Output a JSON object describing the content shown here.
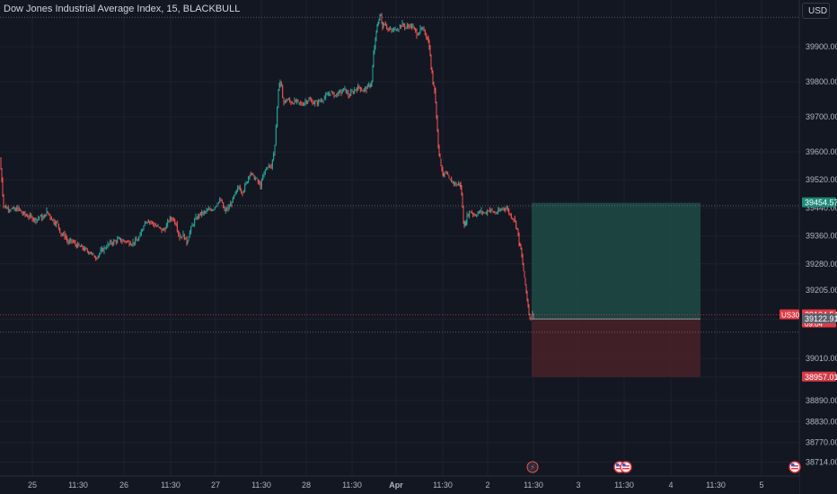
{
  "header": {
    "title": "Dow Jones Industrial Average Index, 15, BLACKBULL",
    "currency": "USD"
  },
  "colors": {
    "background": "#131722",
    "up": "#26a69a",
    "down": "#ef5350",
    "grid": "#1e222d",
    "axis_text": "#b2b5be",
    "target_zone": "#1f4b45",
    "stop_zone": "#4a2128",
    "target_label": "#1f8a7a",
    "stop_label": "#d23b47",
    "symbol_label": "#e03a44",
    "price_label_gray": "#5d606b"
  },
  "chart_data": {
    "type": "candlestick",
    "title": "Dow Jones Industrial Average Index, 15, BLACKBULL",
    "y_ticks": [
      "39900.00",
      "39800.00",
      "39700.00",
      "39600.00",
      "39520.00",
      "39440.00",
      "39360.00",
      "39280.00",
      "39205.00",
      "39122.91",
      "39010.00",
      "38957.01",
      "38890.00",
      "38830.00",
      "38770.00",
      "38714.00"
    ],
    "ylim": [
      38700,
      40010
    ],
    "x_ticks": [
      "25",
      "11:30",
      "26",
      "11:30",
      "27",
      "11:30",
      "28",
      "11:30",
      "Apr",
      "11:30",
      "2",
      "11:30",
      "3",
      "11:30",
      "4",
      "11:30",
      "5"
    ],
    "bold_x_ticks": [
      "Apr"
    ],
    "close_path": [
      [
        0,
        39580
      ],
      [
        2,
        39520
      ],
      [
        4,
        39445
      ],
      [
        8,
        39440
      ],
      [
        12,
        39438
      ],
      [
        16,
        39432
      ],
      [
        20,
        39440
      ],
      [
        24,
        39425
      ],
      [
        28,
        39420
      ],
      [
        32,
        39415
      ],
      [
        36,
        39410
      ],
      [
        40,
        39405
      ],
      [
        44,
        39415
      ],
      [
        48,
        39410
      ],
      [
        52,
        39430
      ],
      [
        56,
        39415
      ],
      [
        60,
        39400
      ],
      [
        64,
        39395
      ],
      [
        68,
        39365
      ],
      [
        72,
        39360
      ],
      [
        76,
        39340
      ],
      [
        80,
        39345
      ],
      [
        84,
        39335
      ],
      [
        88,
        39330
      ],
      [
        92,
        39325
      ],
      [
        96,
        39318
      ],
      [
        100,
        39315
      ],
      [
        104,
        39302
      ],
      [
        108,
        39300
      ],
      [
        112,
        39315
      ],
      [
        116,
        39325
      ],
      [
        120,
        39335
      ],
      [
        124,
        39340
      ],
      [
        128,
        39345
      ],
      [
        132,
        39350
      ],
      [
        136,
        39345
      ],
      [
        140,
        39345
      ],
      [
        144,
        39340
      ],
      [
        148,
        39342
      ],
      [
        152,
        39345
      ],
      [
        156,
        39360
      ],
      [
        160,
        39395
      ],
      [
        164,
        39405
      ],
      [
        168,
        39400
      ],
      [
        172,
        39390
      ],
      [
        176,
        39385
      ],
      [
        180,
        39375
      ],
      [
        184,
        39380
      ],
      [
        188,
        39405
      ],
      [
        192,
        39410
      ],
      [
        196,
        39395
      ],
      [
        200,
        39355
      ],
      [
        204,
        39365
      ],
      [
        208,
        39340
      ],
      [
        210,
        39360
      ],
      [
        214,
        39390
      ],
      [
        218,
        39410
      ],
      [
        222,
        39420
      ],
      [
        226,
        39425
      ],
      [
        230,
        39430
      ],
      [
        234,
        39435
      ],
      [
        238,
        39440
      ],
      [
        242,
        39455
      ],
      [
        246,
        39460
      ],
      [
        250,
        39430
      ],
      [
        254,
        39440
      ],
      [
        258,
        39455
      ],
      [
        262,
        39480
      ],
      [
        266,
        39500
      ],
      [
        270,
        39485
      ],
      [
        274,
        39510
      ],
      [
        278,
        39540
      ],
      [
        282,
        39530
      ],
      [
        286,
        39520
      ],
      [
        290,
        39500
      ],
      [
        294,
        39540
      ],
      [
        298,
        39560
      ],
      [
        302,
        39555
      ],
      [
        306,
        39620
      ],
      [
        310,
        39780
      ],
      [
        312,
        39800
      ],
      [
        316,
        39740
      ],
      [
        320,
        39750
      ],
      [
        324,
        39740
      ],
      [
        328,
        39745
      ],
      [
        332,
        39740
      ],
      [
        336,
        39735
      ],
      [
        340,
        39745
      ],
      [
        344,
        39750
      ],
      [
        348,
        39740
      ],
      [
        352,
        39740
      ],
      [
        356,
        39745
      ],
      [
        360,
        39752
      ],
      [
        364,
        39760
      ],
      [
        368,
        39770
      ],
      [
        372,
        39760
      ],
      [
        376,
        39765
      ],
      [
        380,
        39770
      ],
      [
        384,
        39780
      ],
      [
        388,
        39760
      ],
      [
        392,
        39770
      ],
      [
        396,
        39780
      ],
      [
        400,
        39785
      ],
      [
        404,
        39775
      ],
      [
        408,
        39780
      ],
      [
        412,
        39790
      ],
      [
        414,
        39800
      ],
      [
        416,
        39880
      ],
      [
        418,
        39920
      ],
      [
        420,
        39960
      ],
      [
        422,
        39980
      ],
      [
        424,
        39990
      ],
      [
        426,
        39955
      ],
      [
        428,
        39970
      ],
      [
        432,
        39950
      ],
      [
        436,
        39945
      ],
      [
        440,
        39950
      ],
      [
        444,
        39955
      ],
      [
        448,
        39965
      ],
      [
        452,
        39955
      ],
      [
        456,
        39960
      ],
      [
        460,
        39955
      ],
      [
        464,
        39935
      ],
      [
        468,
        39950
      ],
      [
        472,
        39945
      ],
      [
        476,
        39925
      ],
      [
        478,
        39900
      ],
      [
        480,
        39840
      ],
      [
        482,
        39800
      ],
      [
        484,
        39780
      ],
      [
        486,
        39700
      ],
      [
        488,
        39620
      ],
      [
        490,
        39580
      ],
      [
        492,
        39550
      ],
      [
        494,
        39530
      ],
      [
        496,
        39540
      ],
      [
        500,
        39520
      ],
      [
        504,
        39515
      ],
      [
        508,
        39505
      ],
      [
        512,
        39510
      ],
      [
        514,
        39480
      ],
      [
        516,
        39400
      ],
      [
        518,
        39390
      ],
      [
        520,
        39420
      ],
      [
        524,
        39430
      ],
      [
        528,
        39420
      ],
      [
        532,
        39425
      ],
      [
        536,
        39430
      ],
      [
        540,
        39425
      ],
      [
        544,
        39435
      ],
      [
        548,
        39430
      ],
      [
        552,
        39425
      ],
      [
        556,
        39430
      ],
      [
        560,
        39440
      ],
      [
        564,
        39440
      ],
      [
        568,
        39420
      ],
      [
        572,
        39410
      ],
      [
        576,
        39380
      ],
      [
        578,
        39340
      ],
      [
        580,
        39320
      ],
      [
        582,
        39280
      ],
      [
        584,
        39240
      ],
      [
        586,
        39200
      ],
      [
        588,
        39160
      ],
      [
        590,
        39125
      ],
      [
        592,
        39135
      ],
      [
        594,
        39134.54
      ]
    ],
    "series": [
      {
        "name": "US30",
        "last_value": 39134.54,
        "countdown": "09:04"
      }
    ],
    "horizontal_lines": [
      {
        "price": 39446.2,
        "style": "dotted"
      },
      {
        "price": 39134.54,
        "style": "dotted"
      },
      {
        "price": 39085,
        "style": "dotted"
      },
      {
        "price": 39984,
        "style": "dotted"
      }
    ],
    "position_tool": {
      "type": "long",
      "entry": 39122.91,
      "target": 39454.57,
      "stop": 38957.01,
      "x_start": 592,
      "x_end": 780
    },
    "price_labels": [
      {
        "text": "39454.57",
        "price": 39454.57,
        "kind": "target"
      },
      {
        "text": "39134.54",
        "price": 39134.54,
        "kind": "symbol",
        "tag": "US30",
        "sub": "09:04"
      },
      {
        "text": "39122.91",
        "price": 39122.91,
        "kind": "gray"
      },
      {
        "text": "38957.01",
        "price": 38957.01,
        "kind": "stop"
      }
    ],
    "event_markers": [
      {
        "x_label": "2",
        "icon": "lightning-icon"
      },
      {
        "x_label": "3",
        "icon": "us-flag-icon"
      },
      {
        "x_label": "3b",
        "icon": "us-flag-icon"
      },
      {
        "x_label": "5",
        "icon": "us-flag-icon"
      }
    ],
    "grid": true,
    "legend": "none"
  }
}
